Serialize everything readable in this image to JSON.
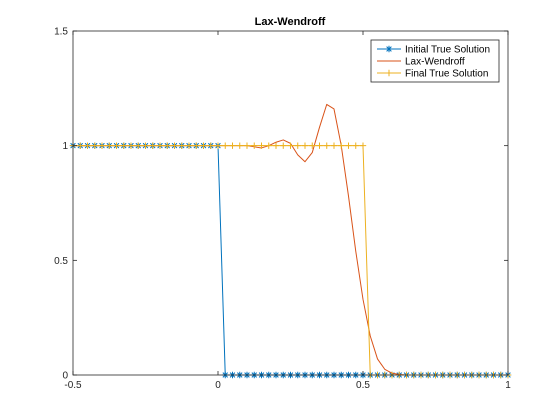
{
  "chart_data": {
    "type": "line",
    "title": "Lax-Wendroff",
    "xlabel": "",
    "ylabel": "",
    "xlim": [
      -0.5,
      1
    ],
    "ylim": [
      0,
      1.5
    ],
    "grid": false,
    "legend_position": "top-right",
    "x_ticks": [
      -0.5,
      0,
      0.5,
      1
    ],
    "x_tick_labels": [
      "-0.5",
      "0",
      "0.5",
      "1"
    ],
    "y_ticks": [
      0,
      0.5,
      1,
      1.5
    ],
    "y_tick_labels": [
      "0",
      "0.5",
      "1",
      "1.5"
    ],
    "series": [
      {
        "name": "Initial True Solution",
        "color": "#0072BD",
        "marker": "*",
        "x": [
          -0.5,
          -0.475,
          -0.45,
          -0.425,
          -0.4,
          -0.375,
          -0.35,
          -0.325,
          -0.3,
          -0.275,
          -0.25,
          -0.225,
          -0.2,
          -0.175,
          -0.15,
          -0.125,
          -0.1,
          -0.075,
          -0.05,
          -0.025,
          0,
          0.025,
          0.05,
          0.075,
          0.1,
          0.125,
          0.15,
          0.175,
          0.2,
          0.225,
          0.25,
          0.275,
          0.3,
          0.325,
          0.35,
          0.375,
          0.4,
          0.425,
          0.45,
          0.475,
          0.5,
          0.525,
          0.55,
          0.575,
          0.6,
          0.625,
          0.65,
          0.675,
          0.7,
          0.725,
          0.75,
          0.775,
          0.8,
          0.825,
          0.85,
          0.875,
          0.9,
          0.925,
          0.95,
          0.975,
          1
        ],
        "y": [
          1,
          1,
          1,
          1,
          1,
          1,
          1,
          1,
          1,
          1,
          1,
          1,
          1,
          1,
          1,
          1,
          1,
          1,
          1,
          1,
          1,
          0,
          0,
          0,
          0,
          0,
          0,
          0,
          0,
          0,
          0,
          0,
          0,
          0,
          0,
          0,
          0,
          0,
          0,
          0,
          0,
          0,
          0,
          0,
          0,
          0,
          0,
          0,
          0,
          0,
          0,
          0,
          0,
          0,
          0,
          0,
          0,
          0,
          0,
          0,
          0
        ]
      },
      {
        "name": "Lax-Wendroff",
        "color": "#D95319",
        "marker": "none",
        "x": [
          -0.5,
          -0.475,
          -0.45,
          -0.425,
          -0.4,
          -0.375,
          -0.35,
          -0.325,
          -0.3,
          -0.275,
          -0.25,
          -0.225,
          -0.2,
          -0.175,
          -0.15,
          -0.125,
          -0.1,
          -0.075,
          -0.05,
          -0.025,
          0,
          0.025,
          0.05,
          0.075,
          0.1,
          0.125,
          0.15,
          0.175,
          0.2,
          0.225,
          0.25,
          0.275,
          0.3,
          0.325,
          0.35,
          0.375,
          0.4,
          0.425,
          0.45,
          0.475,
          0.5,
          0.525,
          0.55,
          0.575,
          0.6,
          0.625,
          0.65,
          0.675,
          0.7,
          0.725,
          0.75,
          0.775,
          0.8,
          0.825,
          0.85,
          0.875,
          0.9,
          0.925,
          0.95,
          0.975,
          1
        ],
        "y": [
          1,
          1,
          1,
          1,
          1,
          1,
          1,
          1,
          1,
          1,
          1,
          1,
          1,
          1,
          1,
          1,
          1,
          1,
          1,
          1,
          1,
          1,
          1,
          1,
          1,
          0.995,
          0.99,
          1.0,
          1.015,
          1.025,
          1.01,
          0.96,
          0.93,
          0.97,
          1.08,
          1.18,
          1.16,
          1.0,
          0.78,
          0.54,
          0.33,
          0.17,
          0.07,
          0.025,
          0.008,
          0.002,
          0,
          0,
          0,
          0,
          0,
          0,
          0,
          0,
          0,
          0,
          0,
          0,
          0,
          0,
          0
        ]
      },
      {
        "name": "Final True Solution",
        "color": "#EDB120",
        "marker": "+",
        "x": [
          -0.5,
          -0.475,
          -0.45,
          -0.425,
          -0.4,
          -0.375,
          -0.35,
          -0.325,
          -0.3,
          -0.275,
          -0.25,
          -0.225,
          -0.2,
          -0.175,
          -0.15,
          -0.125,
          -0.1,
          -0.075,
          -0.05,
          -0.025,
          0,
          0.025,
          0.05,
          0.075,
          0.1,
          0.125,
          0.15,
          0.175,
          0.2,
          0.225,
          0.25,
          0.275,
          0.3,
          0.325,
          0.35,
          0.375,
          0.4,
          0.425,
          0.45,
          0.475,
          0.5,
          0.525,
          0.55,
          0.575,
          0.6,
          0.625,
          0.65,
          0.675,
          0.7,
          0.725,
          0.75,
          0.775,
          0.8,
          0.825,
          0.85,
          0.875,
          0.9,
          0.925,
          0.95,
          0.975,
          1
        ],
        "y": [
          1,
          1,
          1,
          1,
          1,
          1,
          1,
          1,
          1,
          1,
          1,
          1,
          1,
          1,
          1,
          1,
          1,
          1,
          1,
          1,
          1,
          1,
          1,
          1,
          1,
          1,
          1,
          1,
          1,
          1,
          1,
          1,
          1,
          1,
          1,
          1,
          1,
          1,
          1,
          1,
          1,
          0,
          0,
          0,
          0,
          0,
          0,
          0,
          0,
          0,
          0,
          0,
          0,
          0,
          0,
          0,
          0,
          0,
          0,
          0,
          0
        ]
      }
    ]
  }
}
